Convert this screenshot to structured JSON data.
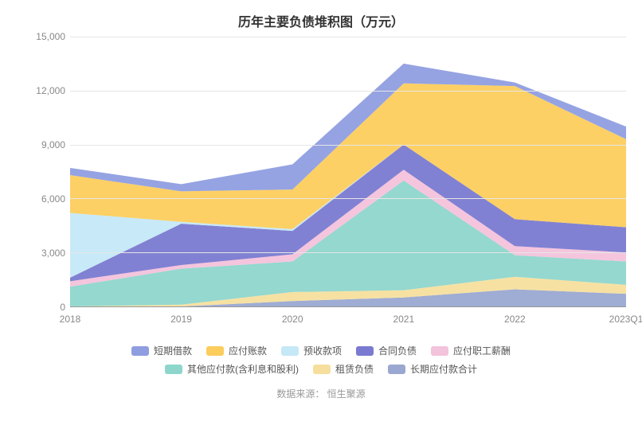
{
  "chart": {
    "type": "area-stacked",
    "title": "历年主要负债堆积图（万元）",
    "background_color": "#ffffff",
    "grid_color": "#e6e6e6",
    "axis_text_color": "#888888",
    "title_fontsize": 16,
    "label_fontsize": 12,
    "ylim": [
      0,
      15000
    ],
    "ytick_step": 3000,
    "yticks": [
      0,
      3000,
      6000,
      9000,
      12000,
      15000
    ],
    "ytick_labels": [
      "0",
      "3,000",
      "6,000",
      "9,000",
      "12,000",
      "15,000"
    ],
    "categories": [
      "2018",
      "2019",
      "2020",
      "2021",
      "2022",
      "2023Q1"
    ],
    "series": [
      {
        "key": "long_term_payable",
        "label": "长期应付款合计",
        "color": "#9aa8d1",
        "values": [
          0,
          0,
          300,
          500,
          950,
          700
        ]
      },
      {
        "key": "lease_liability",
        "label": "租赁负债",
        "color": "#f6df9e",
        "values": [
          0,
          100,
          500,
          400,
          700,
          500
        ]
      },
      {
        "key": "other_payable",
        "label": "其他应付款(含利息和股利)",
        "color": "#8ed6cc",
        "values": [
          1100,
          2000,
          1700,
          6100,
          1200,
          1300
        ]
      },
      {
        "key": "emp_comp_payable",
        "label": "应付职工薪酬",
        "color": "#f3c2db",
        "values": [
          300,
          200,
          400,
          600,
          500,
          500
        ]
      },
      {
        "key": "contract_liability",
        "label": "合同负债",
        "color": "#7a7ad1",
        "values": [
          200,
          2300,
          1300,
          1400,
          1500,
          1400
        ]
      },
      {
        "key": "advance_receipt",
        "label": "预收款项",
        "color": "#c5e8f7",
        "values": [
          3600,
          100,
          100,
          0,
          0,
          0
        ]
      },
      {
        "key": "accounts_payable",
        "label": "应付账款",
        "color": "#fccd5d",
        "values": [
          2100,
          1700,
          2200,
          3400,
          7400,
          4900
        ]
      },
      {
        "key": "short_term_loan",
        "label": "短期借款",
        "color": "#8f9ee0",
        "values": [
          400,
          400,
          1400,
          1100,
          200,
          700
        ]
      }
    ],
    "legend": {
      "rows": [
        [
          "short_term_loan",
          "accounts_payable",
          "advance_receipt",
          "contract_liability",
          "emp_comp_payable"
        ],
        [
          "other_payable",
          "lease_liability",
          "long_term_payable"
        ]
      ]
    },
    "data_source_prefix": "数据来源：",
    "data_source_name": "恒生聚源",
    "area_opacity": 0.95
  }
}
